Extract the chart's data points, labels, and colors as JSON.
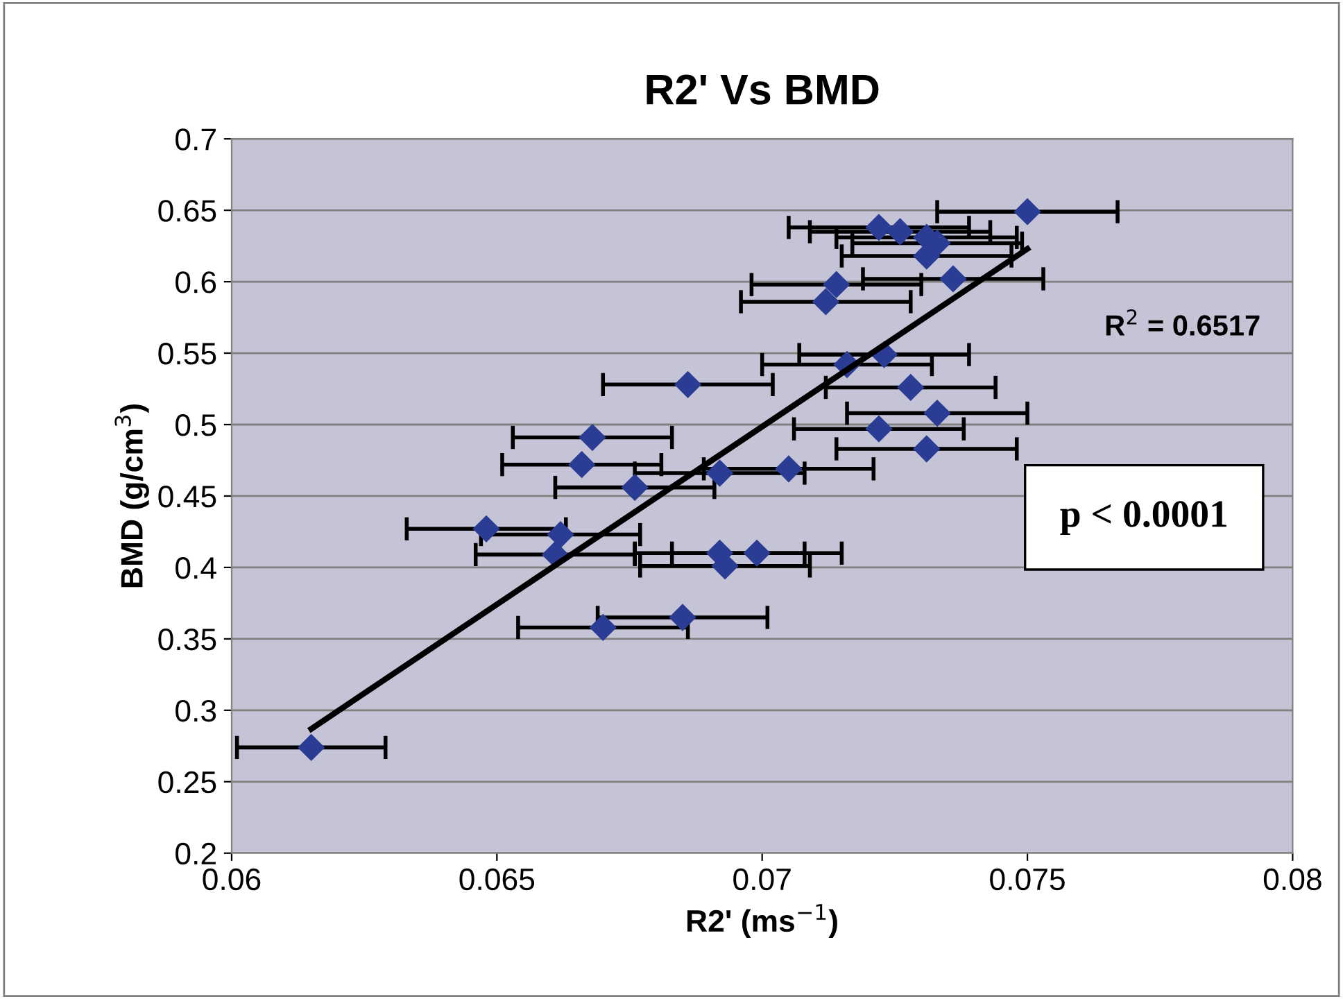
{
  "chart_data": {
    "type": "scatter",
    "title": "R2' Vs BMD",
    "xlabel": "R2' (ms$^{−1}$)",
    "ylabel": "BMD (g/cm$^{3}$)",
    "xlim": [
      0.06,
      0.08
    ],
    "xticks": [
      0.06,
      0.065,
      0.07,
      0.075,
      0.08
    ],
    "ylim": [
      0.2,
      0.7
    ],
    "yticks": [
      0.2,
      0.25,
      0.3,
      0.35,
      0.4,
      0.45,
      0.5,
      0.55,
      0.6,
      0.65,
      0.7
    ],
    "grid": "y",
    "legend": false,
    "series": [
      {
        "color": "#2a3c94",
        "marker": "diamond",
        "x": [
          0.075,
          0.0722,
          0.0726,
          0.0731,
          0.0733,
          0.0731,
          0.0736,
          0.0714,
          0.0712,
          0.0723,
          0.0716,
          0.0686,
          0.0728,
          0.0733,
          0.0722,
          0.0731,
          0.0668,
          0.0666,
          0.0692,
          0.0705,
          0.0676,
          0.0648,
          0.0662,
          0.0661,
          0.0692,
          0.0699,
          0.0693,
          0.0685,
          0.067,
          0.0615
        ],
        "values": [
          0.649,
          0.638,
          0.635,
          0.631,
          0.627,
          0.618,
          0.602,
          0.598,
          0.586,
          0.549,
          0.542,
          0.528,
          0.526,
          0.508,
          0.497,
          0.483,
          0.491,
          0.472,
          0.466,
          0.469,
          0.456,
          0.427,
          0.423,
          0.409,
          0.41,
          0.41,
          0.401,
          0.365,
          0.358,
          0.274
        ],
        "xerrors": [
          0.0017,
          0.0017,
          0.0017,
          0.0017,
          0.0016,
          0.0016,
          0.0017,
          0.0016,
          0.0016,
          0.0016,
          0.0016,
          0.0016,
          0.0016,
          0.0017,
          0.0016,
          0.0017,
          0.0015,
          0.0015,
          0.0016,
          0.0016,
          0.0015,
          0.0015,
          0.0015,
          0.0015,
          0.0016,
          0.0016,
          0.0016,
          0.0016,
          0.0016,
          0.0014
        ]
      },
      {
        "type": "line",
        "color": "#000000",
        "x": [
          0.0615,
          0.075
        ],
        "values": [
          0.287,
          0.623
        ]
      }
    ],
    "annotations": [
      "R$^{2}$ = 0.6517",
      "p < 0.0001"
    ]
  }
}
